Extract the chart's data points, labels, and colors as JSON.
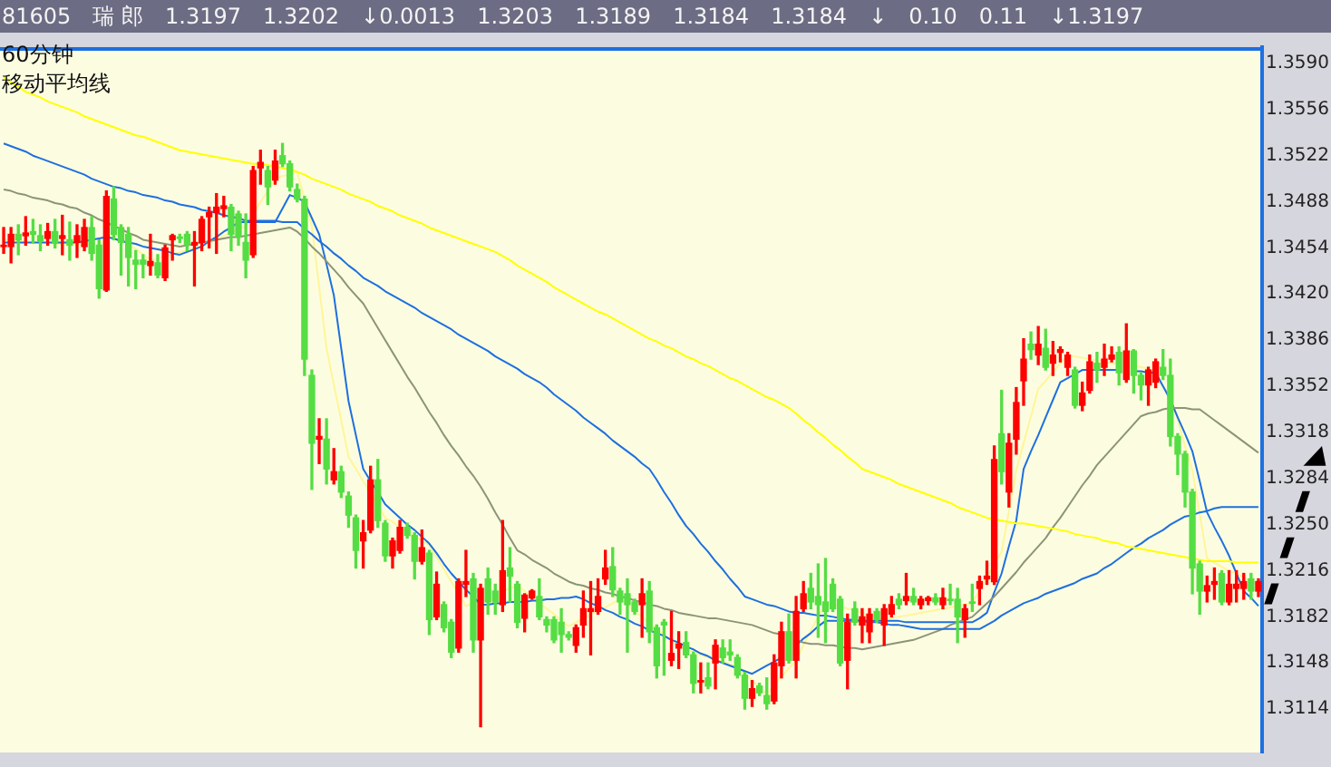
{
  "chart_data": {
    "type": "candlestick",
    "title": "60分钟",
    "subtitle": "移动平均线",
    "annotations": [
      "81605",
      "瑞 郎",
      "1.3197",
      "1.3202",
      "↓0.0013",
      "1.3203",
      "1.3189",
      "1.3184",
      "1.3184",
      "↓",
      "0.10",
      "0.11",
      "↓1.3197"
    ],
    "tick_labels": "y",
    "grid": false,
    "legend": false,
    "ylim": [
      1.3082,
      1.3602
    ],
    "yticks": [
      {
        "value": 1.359,
        "label": "1.3590"
      },
      {
        "value": 1.3556,
        "label": "1.3556"
      },
      {
        "value": 1.3522,
        "label": "1.3522"
      },
      {
        "value": 1.3488,
        "label": "1.3488"
      },
      {
        "value": 1.3454,
        "label": "1.3454"
      },
      {
        "value": 1.342,
        "label": "1.3420"
      },
      {
        "value": 1.3386,
        "label": "1.3386"
      },
      {
        "value": 1.3352,
        "label": "1.3352"
      },
      {
        "value": 1.3318,
        "label": "1.3318"
      },
      {
        "value": 1.3284,
        "label": "1.3284"
      },
      {
        "value": 1.325,
        "label": "1.3250"
      },
      {
        "value": 1.3216,
        "label": "1.3216"
      },
      {
        "value": 1.3182,
        "label": "1.3182"
      },
      {
        "value": 1.3148,
        "label": "1.3148"
      },
      {
        "value": 1.3114,
        "label": "1.3114"
      }
    ],
    "categories": [
      null,
      null,
      null,
      null,
      null,
      null,
      null,
      null,
      null,
      null,
      null,
      null,
      null,
      null,
      null,
      null,
      null,
      null,
      null,
      null,
      null,
      null,
      null,
      null,
      null,
      null,
      null,
      null,
      null,
      null,
      null,
      null,
      null,
      null,
      null,
      null,
      null,
      null,
      null,
      null,
      null,
      null,
      null,
      null,
      null,
      null,
      null,
      null,
      null,
      null,
      null,
      null,
      null,
      null,
      null,
      null,
      null,
      null,
      null,
      null,
      null,
      null,
      null,
      null,
      null,
      null,
      null,
      null,
      null,
      null,
      null,
      null,
      null,
      null,
      null,
      null,
      null,
      null,
      null,
      null,
      null,
      null,
      null,
      null,
      null,
      null,
      null,
      null,
      null,
      null,
      null,
      null,
      null,
      null,
      null,
      null,
      null,
      null,
      null,
      null,
      null,
      null,
      null,
      null,
      null,
      null,
      null,
      null,
      null,
      null,
      null,
      null,
      null,
      null,
      null,
      null,
      null,
      null,
      null,
      null,
      null,
      null,
      null,
      null,
      null,
      null,
      null,
      null,
      null,
      null,
      null,
      null,
      null,
      null,
      null,
      null,
      null,
      null,
      null,
      null,
      null,
      null,
      null,
      null,
      null,
      null,
      null,
      null,
      null,
      null,
      null,
      null,
      null,
      null,
      null,
      null,
      null,
      null,
      null,
      null,
      null,
      null,
      null,
      null,
      null,
      null,
      null,
      null,
      null,
      null,
      null,
      null
    ],
    "ohlc": [
      [
        1.3455,
        1.3469,
        1.345,
        1.3456
      ],
      [
        1.3455,
        1.3469,
        1.3443,
        1.3464
      ],
      [
        1.3464,
        1.3471,
        1.3449,
        1.346
      ],
      [
        1.3463,
        1.3477,
        1.3456,
        1.3465
      ],
      [
        1.3466,
        1.3475,
        1.3458,
        1.3464
      ],
      [
        1.3463,
        1.3471,
        1.3452,
        1.3459
      ],
      [
        1.3461,
        1.3472,
        1.3456,
        1.3466
      ],
      [
        1.3466,
        1.3475,
        1.3454,
        1.3458
      ],
      [
        1.3461,
        1.3478,
        1.3449,
        1.3463
      ],
      [
        1.346,
        1.3473,
        1.3445,
        1.3456
      ],
      [
        1.3458,
        1.3471,
        1.3447,
        1.3463
      ],
      [
        1.3455,
        1.3475,
        1.3452,
        1.3469
      ],
      [
        1.3469,
        1.3477,
        1.3445,
        1.345
      ],
      [
        1.3456,
        1.346,
        1.3417,
        1.3424
      ],
      [
        1.3423,
        1.3496,
        1.3422,
        1.3492
      ],
      [
        1.349,
        1.3499,
        1.346,
        1.3464
      ],
      [
        1.3469,
        1.3471,
        1.3434,
        1.3458
      ],
      [
        1.3464,
        1.3469,
        1.3426,
        1.3447
      ],
      [
        1.3445,
        1.3452,
        1.3424,
        1.3442
      ],
      [
        1.3445,
        1.3449,
        1.3432,
        1.3442
      ],
      [
        1.3441,
        1.3464,
        1.3434,
        1.3444
      ],
      [
        1.3443,
        1.3449,
        1.3432,
        1.3434
      ],
      [
        1.3432,
        1.3456,
        1.343,
        1.3454
      ],
      [
        1.346,
        1.3464,
        1.3445,
        1.3463
      ],
      [
        1.3462,
        1.3464,
        1.3458,
        1.3461
      ],
      [
        1.3464,
        1.3466,
        1.3452,
        1.3456
      ],
      [
        1.3456,
        1.3466,
        1.3426,
        1.3458
      ],
      [
        1.3458,
        1.3477,
        1.3452,
        1.3475
      ],
      [
        1.3477,
        1.3484,
        1.3454,
        1.348
      ],
      [
        1.348,
        1.3494,
        1.345,
        1.3484
      ],
      [
        1.3483,
        1.3492,
        1.3477,
        1.3485
      ],
      [
        1.3484,
        1.3486,
        1.3452,
        1.3464
      ],
      [
        1.3479,
        1.3481,
        1.3456,
        1.3462
      ],
      [
        1.3458,
        1.3479,
        1.3432,
        1.3445
      ],
      [
        1.3449,
        1.3514,
        1.3447,
        1.3511
      ],
      [
        1.3513,
        1.3526,
        1.3501,
        1.3517
      ],
      [
        1.3511,
        1.3514,
        1.3486,
        1.3499
      ],
      [
        1.3504,
        1.3526,
        1.3501,
        1.3518
      ],
      [
        1.3522,
        1.3531,
        1.3514,
        1.3516
      ],
      [
        1.3516,
        1.3518,
        1.3496,
        1.3499
      ],
      [
        1.3497,
        1.3501,
        1.3488,
        1.349
      ],
      [
        1.349,
        1.3492,
        1.336,
        1.3372
      ],
      [
        1.336,
        1.3364,
        1.3276,
        1.331
      ],
      [
        1.3313,
        1.3328,
        1.3295,
        1.3315
      ],
      [
        1.3313,
        1.3328,
        1.328,
        1.3291
      ],
      [
        1.3283,
        1.3306,
        1.328,
        1.3289
      ],
      [
        1.3289,
        1.3293,
        1.327,
        1.3274
      ],
      [
        1.3271,
        1.3274,
        1.3248,
        1.3257
      ],
      [
        1.3255,
        1.3257,
        1.3218,
        1.3231
      ],
      [
        1.3238,
        1.3253,
        1.3218,
        1.3244
      ],
      [
        1.3246,
        1.3293,
        1.3244,
        1.3283
      ],
      [
        1.3283,
        1.3298,
        1.3248,
        1.3253
      ],
      [
        1.3251,
        1.3253,
        1.3223,
        1.3227
      ],
      [
        1.3227,
        1.324,
        1.3218,
        1.3238
      ],
      [
        1.3231,
        1.3253,
        1.3229,
        1.3248
      ],
      [
        1.3248,
        1.3251,
        1.324,
        1.3242
      ],
      [
        1.3242,
        1.3244,
        1.321,
        1.3223
      ],
      [
        1.3223,
        1.3246,
        1.3221,
        1.3233
      ],
      [
        1.3229,
        1.3231,
        1.3169,
        1.318
      ],
      [
        1.3182,
        1.3215,
        1.318,
        1.3206
      ],
      [
        1.3191,
        1.3193,
        1.3171,
        1.3174
      ],
      [
        1.3178,
        1.318,
        1.3152,
        1.3156
      ],
      [
        1.3159,
        1.321,
        1.3156,
        1.3208
      ],
      [
        1.3206,
        1.3231,
        1.3197,
        1.3208
      ],
      [
        1.321,
        1.3214,
        1.3156,
        1.3165
      ],
      [
        1.3165,
        1.3206,
        1.3101,
        1.3203
      ],
      [
        1.321,
        1.3218,
        1.3184,
        1.3193
      ],
      [
        1.3201,
        1.3206,
        1.3184,
        1.3193
      ],
      [
        1.3191,
        1.3253,
        1.3186,
        1.3216
      ],
      [
        1.3218,
        1.3233,
        1.3193,
        1.3212
      ],
      [
        1.3206,
        1.3208,
        1.3174,
        1.3178
      ],
      [
        1.3181,
        1.3199,
        1.3171,
        1.3198
      ],
      [
        1.3196,
        1.3202,
        1.3195,
        1.3201
      ],
      [
        1.3197,
        1.321,
        1.318,
        1.3182
      ],
      [
        1.318,
        1.3182,
        1.3171,
        1.3176
      ],
      [
        1.318,
        1.3182,
        1.3163,
        1.3165
      ],
      [
        1.3178,
        1.3188,
        1.3156,
        1.3169
      ],
      [
        1.3169,
        1.3171,
        1.3165,
        1.3167
      ],
      [
        1.3161,
        1.3176,
        1.3156,
        1.3174
      ],
      [
        1.3176,
        1.3201,
        1.3167,
        1.3188
      ],
      [
        1.3186,
        1.3208,
        1.3154,
        1.3188
      ],
      [
        1.3186,
        1.321,
        1.3184,
        1.3197
      ],
      [
        1.321,
        1.3231,
        1.3206,
        1.3218
      ],
      [
        1.3219,
        1.3233,
        1.3197,
        1.3202
      ],
      [
        1.3201,
        1.3203,
        1.3184,
        1.3193
      ],
      [
        1.3199,
        1.321,
        1.3156,
        1.3191
      ],
      [
        1.3193,
        1.3195,
        1.3184,
        1.3186
      ],
      [
        1.3191,
        1.321,
        1.3167,
        1.3199
      ],
      [
        1.3201,
        1.3208,
        1.3163,
        1.3171
      ],
      [
        1.3174,
        1.3176,
        1.3137,
        1.3146
      ],
      [
        1.3178,
        1.318,
        1.3139,
        1.3176
      ],
      [
        1.315,
        1.3186,
        1.3146,
        1.3155
      ],
      [
        1.3159,
        1.3171,
        1.3144,
        1.3162
      ],
      [
        1.3163,
        1.3171,
        1.3152,
        1.3154
      ],
      [
        1.3154,
        1.3156,
        1.3126,
        1.3133
      ],
      [
        1.3134,
        1.3148,
        1.3126,
        1.3135
      ],
      [
        1.3137,
        1.3148,
        1.3129,
        1.3131
      ],
      [
        1.3148,
        1.3165,
        1.3129,
        1.3161
      ],
      [
        1.3159,
        1.3165,
        1.3148,
        1.3152
      ],
      [
        1.3156,
        1.3165,
        1.315,
        1.3154
      ],
      [
        1.3152,
        1.3154,
        1.3137,
        1.3139
      ],
      [
        1.3139,
        1.3141,
        1.3114,
        1.3122
      ],
      [
        1.3122,
        1.3135,
        1.3116,
        1.3129
      ],
      [
        1.3131,
        1.3133,
        1.3124,
        1.3126
      ],
      [
        1.3124,
        1.3137,
        1.3114,
        1.3118
      ],
      [
        1.312,
        1.3154,
        1.3118,
        1.3148
      ],
      [
        1.3146,
        1.3178,
        1.3137,
        1.3171
      ],
      [
        1.3171,
        1.3184,
        1.3148,
        1.315
      ],
      [
        1.315,
        1.3197,
        1.3137,
        1.3186
      ],
      [
        1.3188,
        1.3208,
        1.3186,
        1.3199
      ],
      [
        1.3203,
        1.3214,
        1.3188,
        1.3193
      ],
      [
        1.3197,
        1.3221,
        1.3167,
        1.3191
      ],
      [
        1.3193,
        1.3225,
        1.3163,
        1.3186
      ],
      [
        1.3206,
        1.321,
        1.3186,
        1.3188
      ],
      [
        1.3195,
        1.3197,
        1.3146,
        1.3148
      ],
      [
        1.315,
        1.3184,
        1.3129,
        1.3178
      ],
      [
        1.3188,
        1.3193,
        1.3176,
        1.3178
      ],
      [
        1.3176,
        1.3188,
        1.3163,
        1.3182
      ],
      [
        1.3171,
        1.3188,
        1.3163,
        1.3184
      ],
      [
        1.3186,
        1.3188,
        1.3178,
        1.318
      ],
      [
        1.3176,
        1.3191,
        1.3161,
        1.3188
      ],
      [
        1.3184,
        1.3197,
        1.3182,
        1.3191
      ],
      [
        1.3195,
        1.3199,
        1.3188,
        1.3191
      ],
      [
        1.3194,
        1.3214,
        1.3191,
        1.3197
      ],
      [
        1.3197,
        1.3203,
        1.3191,
        1.3193
      ],
      [
        1.3191,
        1.3197,
        1.3188,
        1.3195
      ],
      [
        1.3194,
        1.3197,
        1.3191,
        1.3196
      ],
      [
        1.3196,
        1.3199,
        1.3191,
        1.3193
      ],
      [
        1.3191,
        1.3203,
        1.3188,
        1.3196
      ],
      [
        1.3195,
        1.3206,
        1.3191,
        1.3194
      ],
      [
        1.3195,
        1.3203,
        1.3163,
        1.3182
      ],
      [
        1.318,
        1.3191,
        1.3167,
        1.3188
      ],
      [
        1.3193,
        1.3206,
        1.3186,
        1.3192
      ],
      [
        1.3203,
        1.3212,
        1.3191,
        1.3208
      ],
      [
        1.321,
        1.3223,
        1.3206,
        1.3212
      ],
      [
        1.3208,
        1.3308,
        1.3206,
        1.3298
      ],
      [
        1.3317,
        1.3349,
        1.328,
        1.3289
      ],
      [
        1.3274,
        1.3317,
        1.3263,
        1.331
      ],
      [
        1.3313,
        1.3351,
        1.3302,
        1.334
      ],
      [
        1.3356,
        1.3387,
        1.3338,
        1.3372
      ],
      [
        1.3383,
        1.3392,
        1.3372,
        1.3379
      ],
      [
        1.3375,
        1.3396,
        1.3368,
        1.3383
      ],
      [
        1.338,
        1.3394,
        1.3364,
        1.3366
      ],
      [
        1.3369,
        1.3385,
        1.336,
        1.3375
      ],
      [
        1.3377,
        1.3381,
        1.337,
        1.3379
      ],
      [
        1.3366,
        1.3377,
        1.336,
        1.3375
      ],
      [
        1.3364,
        1.3366,
        1.3336,
        1.3338
      ],
      [
        1.3338,
        1.3355,
        1.3334,
        1.3347
      ],
      [
        1.3349,
        1.3375,
        1.3347,
        1.337
      ],
      [
        1.3369,
        1.3377,
        1.3355,
        1.3364
      ],
      [
        1.3366,
        1.3383,
        1.336,
        1.3372
      ],
      [
        1.3372,
        1.3381,
        1.337,
        1.3375
      ],
      [
        1.3377,
        1.3381,
        1.3353,
        1.3362
      ],
      [
        1.3357,
        1.3398,
        1.3355,
        1.3378
      ],
      [
        1.3378,
        1.3379,
        1.3347,
        1.336
      ],
      [
        1.336,
        1.3362,
        1.3342,
        1.3353
      ],
      [
        1.3353,
        1.3366,
        1.3338,
        1.3364
      ],
      [
        1.3355,
        1.3372,
        1.3351,
        1.337
      ],
      [
        1.3366,
        1.3379,
        1.3357,
        1.336
      ],
      [
        1.336,
        1.3372,
        1.3308,
        1.3315
      ],
      [
        1.3315,
        1.3317,
        1.3287,
        1.3302
      ],
      [
        1.3302,
        1.3304,
        1.3263,
        1.3274
      ],
      [
        1.3274,
        1.3276,
        1.3199,
        1.3218
      ],
      [
        1.3221,
        1.3223,
        1.3184,
        1.3201
      ],
      [
        1.3201,
        1.3212,
        1.3193,
        1.3205
      ],
      [
        1.3206,
        1.3218,
        1.3195,
        1.3208
      ],
      [
        1.3214,
        1.3216,
        1.3191,
        1.3193
      ],
      [
        1.3193,
        1.3216,
        1.3191,
        1.3206
      ],
      [
        1.3203,
        1.3216,
        1.3193,
        1.3206
      ],
      [
        1.3203,
        1.3214,
        1.3195,
        1.3208
      ],
      [
        1.321,
        1.3214,
        1.3195,
        1.3201
      ],
      [
        1.3201,
        1.321,
        1.3197,
        1.3208
      ]
    ],
    "colors": [
      "#ff0000",
      "#ff0000",
      "#55dd44",
      "#ff0000",
      "#55dd44",
      "#55dd44",
      "#ff0000",
      "#55dd44",
      "#ff0000",
      "#55dd44",
      "#ff0000",
      "#ff0000",
      "#55dd44",
      "#55dd44",
      "#ff0000",
      "#55dd44",
      "#55dd44",
      "#55dd44",
      "#55dd44",
      "#55dd44",
      "#ff0000",
      "#55dd44",
      "#ff0000",
      "#ff0000",
      "#55dd44",
      "#55dd44",
      "#ff0000",
      "#ff0000",
      "#ff0000",
      "#ff0000",
      "#ff0000",
      "#55dd44",
      "#55dd44",
      "#55dd44",
      "#ff0000",
      "#ff0000",
      "#55dd44",
      "#ff0000",
      "#55dd44",
      "#55dd44",
      "#55dd44",
      "#55dd44",
      "#55dd44",
      "#ff0000",
      "#55dd44",
      "#ff0000",
      "#55dd44",
      "#55dd44",
      "#55dd44",
      "#ff0000",
      "#ff0000",
      "#55dd44",
      "#55dd44",
      "#ff0000",
      "#ff0000",
      "#55dd44",
      "#55dd44",
      "#ff0000",
      "#55dd44",
      "#ff0000",
      "#55dd44",
      "#55dd44",
      "#ff0000",
      "#ff0000",
      "#55dd44",
      "#ff0000",
      "#55dd44",
      "#55dd44",
      "#ff0000",
      "#55dd44",
      "#55dd44",
      "#ff0000",
      "#ff0000",
      "#55dd44",
      "#55dd44",
      "#55dd44",
      "#55dd44",
      "#55dd44",
      "#ff0000",
      "#ff0000",
      "#ff0000",
      "#ff0000",
      "#ff0000",
      "#55dd44",
      "#55dd44",
      "#55dd44",
      "#55dd44",
      "#ff0000",
      "#55dd44",
      "#55dd44",
      "#55dd44",
      "#ff0000",
      "#ff0000",
      "#55dd44",
      "#55dd44",
      "#ff0000",
      "#55dd44",
      "#ff0000",
      "#55dd44",
      "#55dd44",
      "#55dd44",
      "#55dd44",
      "#ff0000",
      "#55dd44",
      "#55dd44",
      "#ff0000",
      "#ff0000",
      "#55dd44",
      "#ff0000",
      "#ff0000",
      "#55dd44",
      "#55dd44",
      "#55dd44",
      "#55dd44",
      "#55dd44",
      "#ff0000",
      "#55dd44",
      "#ff0000",
      "#ff0000",
      "#55dd44",
      "#ff0000",
      "#ff0000",
      "#55dd44",
      "#ff0000",
      "#55dd44",
      "#ff0000",
      "#ff0000",
      "#55dd44",
      "#ff0000",
      "#55dd44",
      "#55dd44",
      "#ff0000",
      "#55dd44",
      "#ff0000",
      "#ff0000",
      "#ff0000",
      "#55dd44",
      "#ff0000",
      "#ff0000",
      "#ff0000",
      "#55dd44",
      "#ff0000",
      "#55dd44",
      "#ff0000",
      "#ff0000",
      "#ff0000",
      "#55dd44",
      "#ff0000",
      "#ff0000",
      "#55dd44",
      "#ff0000",
      "#ff0000",
      "#55dd44",
      "#ff0000",
      "#55dd44",
      "#55dd44",
      "#ff0000",
      "#ff0000",
      "#55dd44",
      "#55dd44",
      "#55dd44",
      "#55dd44",
      "#55dd44",
      "#55dd44",
      "#ff0000",
      "#ff0000",
      "#55dd44",
      "#ff0000",
      "#ff0000",
      "#ff0000",
      "#55dd44",
      "#ff0000"
    ],
    "series": [
      {
        "type": "line",
        "color": "#ffff00",
        "values": [
          1.358,
          1.3576,
          1.3573,
          1.3569,
          1.3567,
          1.3565,
          1.3562,
          1.356,
          1.3558,
          1.3556,
          1.3554,
          1.3551,
          1.3549,
          1.3547,
          1.3545,
          1.3543,
          1.3541,
          1.3539,
          1.3537,
          1.3536,
          1.3534,
          1.3532,
          1.353,
          1.3528,
          1.3526,
          1.3525,
          1.3524,
          1.3523,
          1.3522,
          1.3521,
          1.352,
          1.3519,
          1.3518,
          1.3517,
          1.3516,
          1.3516,
          1.3515,
          1.3514,
          1.3513,
          1.3512,
          1.351,
          1.3508,
          1.3505,
          1.3503,
          1.3501,
          1.3499,
          1.3497,
          1.3494,
          1.3492,
          1.349,
          1.3488,
          1.3485,
          1.3483,
          1.3481,
          1.3478,
          1.3476,
          1.3474,
          1.3472,
          1.3469,
          1.3467,
          1.3465,
          1.3463,
          1.3461,
          1.3459,
          1.3457,
          1.3455,
          1.3453,
          1.3451,
          1.3448,
          1.3445,
          1.3441,
          1.3438,
          1.3435,
          1.3432,
          1.3429,
          1.3425,
          1.3422,
          1.3419,
          1.3416,
          1.3413,
          1.341,
          1.3407,
          1.3405,
          1.3402,
          1.3399,
          1.3396,
          1.3393,
          1.339,
          1.3387,
          1.3385,
          1.3382,
          1.338,
          1.3377,
          1.3374,
          1.3372,
          1.3369,
          1.3367,
          1.3364,
          1.3361,
          1.3358,
          1.3356,
          1.3353,
          1.335,
          1.3347,
          1.3344,
          1.3342,
          1.3339,
          1.3336,
          1.3332,
          1.3327,
          1.3323,
          1.3318,
          1.3314,
          1.3309,
          1.3305,
          1.33,
          1.3296,
          1.3291,
          1.3289,
          1.3287,
          1.3285,
          1.3283,
          1.328,
          1.3278,
          1.3276,
          1.3274,
          1.3272,
          1.327,
          1.3268,
          1.3266,
          1.3263,
          1.3261,
          1.3259,
          1.3257,
          1.3255,
          1.3254,
          1.3253,
          1.3252,
          1.3251,
          1.3251,
          1.325,
          1.3249,
          1.3248,
          1.3247,
          1.3246,
          1.3245,
          1.3243,
          1.3242,
          1.3241,
          1.324,
          1.3238,
          1.3237,
          1.3236,
          1.3234,
          1.3233,
          1.3232,
          1.3231,
          1.323,
          1.3229,
          1.3228,
          1.3227,
          1.3226,
          1.3225,
          1.3224,
          1.3223,
          1.3223,
          1.3223,
          1.3223,
          1.3222,
          1.3222,
          1.3222,
          1.3222
        ]
      },
      {
        "type": "line",
        "color": "#1e6fe0",
        "values": [
          1.3531,
          1.3529,
          1.3527,
          1.3525,
          1.3522,
          1.352,
          1.3518,
          1.3516,
          1.3514,
          1.3512,
          1.351,
          1.3508,
          1.3505,
          1.3503,
          1.3501,
          1.3499,
          1.3498,
          1.3496,
          1.3495,
          1.3493,
          1.3492,
          1.3491,
          1.3489,
          1.3488,
          1.3486,
          1.3485,
          1.3484,
          1.3482,
          1.3481,
          1.348,
          1.3478,
          1.3477,
          1.3476,
          1.3474,
          1.3474,
          1.3474,
          1.3474,
          1.3474,
          1.3473,
          1.3473,
          1.3473,
          1.3468,
          1.3464,
          1.3459,
          1.3455,
          1.345,
          1.3446,
          1.3441,
          1.3437,
          1.3432,
          1.3429,
          1.3426,
          1.3422,
          1.3419,
          1.3416,
          1.3413,
          1.341,
          1.3406,
          1.3403,
          1.34,
          1.3397,
          1.3394,
          1.339,
          1.3387,
          1.3384,
          1.3381,
          1.3378,
          1.3374,
          1.3371,
          1.3368,
          1.3365,
          1.3361,
          1.3358,
          1.3355,
          1.3351,
          1.3346,
          1.3342,
          1.3338,
          1.3334,
          1.3329,
          1.3325,
          1.3321,
          1.3317,
          1.3312,
          1.3308,
          1.3304,
          1.33,
          1.3295,
          1.3291,
          1.3283,
          1.3274,
          1.3266,
          1.3257,
          1.3249,
          1.3243,
          1.3236,
          1.323,
          1.3223,
          1.3217,
          1.321,
          1.3204,
          1.3197,
          1.3195,
          1.3193,
          1.3191,
          1.319,
          1.3188,
          1.3186,
          1.3185,
          1.3185,
          1.3184,
          1.3183,
          1.3183,
          1.3182,
          1.3181,
          1.318,
          1.318,
          1.3179,
          1.3178,
          1.3178,
          1.3177,
          1.3176,
          1.3176,
          1.3175,
          1.3174,
          1.3173,
          1.3173,
          1.3173,
          1.3173,
          1.3173,
          1.3173,
          1.3173,
          1.3173,
          1.3173,
          1.3176,
          1.3179,
          1.3183,
          1.3186,
          1.3189,
          1.3192,
          1.3194,
          1.3196,
          1.3199,
          1.3201,
          1.3203,
          1.3205,
          1.3207,
          1.321,
          1.3212,
          1.3214,
          1.3218,
          1.3221,
          1.3225,
          1.3229,
          1.3233,
          1.3236,
          1.324,
          1.3243,
          1.3246,
          1.325,
          1.3253,
          1.3256,
          1.3257,
          1.3259,
          1.326,
          1.3262,
          1.3263,
          1.3263,
          1.3263,
          1.3263,
          1.3263,
          1.3263
        ]
      },
      {
        "type": "line",
        "color": "#8c9478",
        "values": [
          1.3497,
          1.3496,
          1.3494,
          1.3493,
          1.3491,
          1.349,
          1.3489,
          1.3487,
          1.3486,
          1.3484,
          1.3483,
          1.348,
          1.3478,
          1.3475,
          1.3473,
          1.347,
          1.3468,
          1.3465,
          1.3463,
          1.346,
          1.3459,
          1.3458,
          1.3457,
          1.3456,
          1.3455,
          1.3456,
          1.3457,
          1.3458,
          1.3459,
          1.346,
          1.3461,
          1.3462,
          1.3462,
          1.3463,
          1.3464,
          1.3465,
          1.3466,
          1.3467,
          1.3468,
          1.3469,
          1.3466,
          1.3461,
          1.3455,
          1.345,
          1.3444,
          1.3438,
          1.3432,
          1.3425,
          1.3419,
          1.3413,
          1.3404,
          1.3395,
          1.3386,
          1.3377,
          1.3368,
          1.3359,
          1.3351,
          1.3342,
          1.3333,
          1.3325,
          1.3316,
          1.3308,
          1.3301,
          1.3293,
          1.3286,
          1.3278,
          1.3269,
          1.3259,
          1.325,
          1.324,
          1.3231,
          1.3228,
          1.3224,
          1.3221,
          1.3218,
          1.3214,
          1.3211,
          1.3208,
          1.3206,
          1.3205,
          1.3203,
          1.3202,
          1.32,
          1.3199,
          1.3197,
          1.3196,
          1.3194,
          1.3193,
          1.3191,
          1.319,
          1.3188,
          1.3187,
          1.3185,
          1.3184,
          1.3183,
          1.3182,
          1.3181,
          1.3181,
          1.318,
          1.3179,
          1.3178,
          1.3177,
          1.3176,
          1.3174,
          1.3172,
          1.317,
          1.3169,
          null,
          1.3165,
          1.3163,
          1.3162,
          1.3162,
          1.3161,
          1.3161,
          1.316,
          1.3159,
          1.3159,
          1.3158,
          1.3159,
          1.316,
          1.3161,
          1.3162,
          1.3163,
          1.3164,
          1.3165,
          1.3167,
          1.3169,
          1.3171,
          1.3173,
          1.3176,
          1.3178,
          1.318,
          1.3182,
          1.3187,
          1.3192,
          1.3197,
          1.3203,
          1.3209,
          1.3215,
          1.3222,
          1.3228,
          1.3234,
          1.324,
          1.3248,
          1.3255,
          1.3263,
          1.3271,
          1.3279,
          1.3286,
          1.3294,
          1.33,
          1.3306,
          1.3312,
          1.3318,
          1.3324,
          1.333,
          1.3332,
          1.3333,
          1.3335,
          1.3336,
          1.3336,
          1.3336,
          1.3335,
          1.3335,
          1.3331,
          1.3327,
          1.3323,
          1.3319,
          1.3315,
          1.3311,
          1.3307,
          1.3303
        ]
      },
      {
        "type": "line",
        "color": "#1e6fe0",
        "values": [
          1.3458,
          1.3458,
          1.3458,
          1.3458,
          1.3458,
          1.3458,
          1.3458,
          1.3458,
          1.3458,
          1.3458,
          1.3458,
          1.3459,
          1.346,
          1.3461,
          1.3462,
          1.3461,
          1.3459,
          1.3458,
          1.3457,
          1.3455,
          1.3454,
          1.3453,
          1.3452,
          1.345,
          1.3449,
          1.3451,
          1.3453,
          1.3455,
          1.3459,
          1.3462,
          1.3466,
          1.3469,
          1.3473,
          1.3473,
          1.3473,
          1.3473,
          1.3473,
          1.3473,
          1.3483,
          1.3493,
          1.3491,
          1.3488,
          1.3476,
          1.3464,
          1.3442,
          1.3419,
          1.338,
          1.3341,
          1.3316,
          1.3291,
          1.3282,
          1.3274,
          1.3265,
          1.326,
          1.3255,
          1.325,
          1.3246,
          1.3241,
          1.3236,
          1.3229,
          1.3221,
          1.3214,
          1.3208,
          1.3202,
          1.3197,
          1.3191,
          1.3191,
          1.3192,
          1.3192,
          1.3193,
          1.3193,
          1.3193,
          1.3194,
          1.3194,
          1.3195,
          1.3195,
          1.3196,
          1.3196,
          1.3197,
          1.3195,
          1.3192,
          1.319,
          1.3187,
          1.3185,
          1.3182,
          1.318,
          1.3177,
          1.3175,
          1.3172,
          1.317,
          1.3168,
          1.3165,
          1.3163,
          1.316,
          1.3158,
          1.3155,
          1.3153,
          1.315,
          1.3148,
          1.3146,
          1.3144,
          1.3142,
          1.314,
          1.3143,
          1.3146,
          1.3149,
          1.3152,
          null,
          1.3161,
          1.3166,
          1.317,
          1.3175,
          1.3179,
          1.3179,
          1.3179,
          1.3179,
          1.3179,
          1.3179,
          1.3179,
          1.3179,
          1.3179,
          1.3179,
          1.3179,
          1.3178,
          1.3178,
          1.3178,
          1.3178,
          1.3178,
          1.3178,
          1.3178,
          1.3178,
          1.3178,
          1.3178,
          1.3181,
          1.3185,
          1.32,
          1.3214,
          1.3234,
          1.3253,
          1.3291,
          1.3304,
          1.3316,
          1.3329,
          1.3342,
          1.3355,
          1.3358,
          1.3361,
          1.3364,
          1.3364,
          1.3364,
          1.3364,
          1.3364,
          1.3364,
          null,
          1.3363,
          1.3363,
          1.3362,
          1.3362,
          1.3352,
          1.3342,
          1.3329,
          1.3317,
          1.3304,
          1.3282,
          1.3259,
          1.3248,
          1.3238,
          1.3227,
          1.3214,
          1.3201,
          1.3196,
          1.319
        ]
      },
      {
        "type": "line",
        "color": "#fff59a",
        "values": [
          1.346,
          1.346,
          1.3459,
          1.3459,
          1.3458,
          1.3458,
          1.3458,
          1.3457,
          1.3457,
          1.3457,
          1.3456,
          1.3456,
          null,
          1.3455,
          1.346,
          1.3465,
          1.3461,
          1.3457,
          1.3453,
          1.3449,
          1.3445,
          1.3446,
          1.3448,
          1.3449,
          1.3451,
          1.3452,
          1.3454,
          1.3455,
          1.3458,
          1.346,
          1.3463,
          1.3465,
          1.3468,
          1.347,
          1.3479,
          1.3488,
          1.3496,
          1.3505,
          1.3507,
          1.3508,
          1.351,
          1.349,
          1.347,
          1.3425,
          1.338,
          1.3353,
          1.3327,
          1.33,
          1.3291,
          1.3282,
          1.3273,
          1.3264,
          1.3255,
          1.3252,
          1.3248,
          1.3245,
          1.3242,
          1.3238,
          1.3235,
          1.3226,
          1.3217,
          1.3208,
          1.3199,
          1.319,
          1.3192,
          null,
          null,
          null,
          1.3201,
          1.3203,
          1.3205,
          1.3201,
          1.3196,
          1.3192,
          1.3188,
          1.3184,
          1.3179,
          1.3175,
          1.3178,
          1.3181,
          1.3184,
          1.3186,
          1.3189,
          1.3192,
          1.3195,
          1.3191,
          1.3186,
          1.3182,
          1.3177,
          1.3173,
          1.3169,
          1.3164,
          1.316,
          1.3158,
          1.3156,
          1.3154,
          1.3152,
          1.3151,
          1.3149,
          1.3147,
          1.3145,
          1.314,
          1.3135,
          1.313,
          1.3125,
          1.3131,
          1.3138,
          1.3144,
          1.315,
          1.3161,
          1.3172,
          1.3182,
          1.3193,
          1.3191,
          1.319,
          1.3188,
          1.3187,
          1.3185,
          1.3183,
          1.3182,
          1.318,
          1.3181,
          1.3182,
          1.3183,
          1.3184,
          1.3185,
          1.3186,
          1.3187,
          1.3188,
          1.3189,
          1.319,
          1.3191,
          1.3192,
          1.3202,
          1.3211,
          1.3221,
          1.323,
          1.326,
          1.329,
          1.331,
          1.333,
          1.335,
          1.3356,
          1.3363,
          1.3369,
          1.3375,
          1.3374,
          1.3373,
          1.3372,
          1.3371,
          1.337,
          1.3369,
          1.3368,
          null,
          1.3367,
          1.3366,
          1.3365,
          1.3358,
          1.3352,
          1.3345,
          1.3327,
          1.3308,
          1.329,
          1.3258,
          1.3225,
          1.3222,
          1.3219,
          1.3216,
          1.3214,
          1.3211,
          1.3208,
          1.3205
        ]
      }
    ]
  }
}
